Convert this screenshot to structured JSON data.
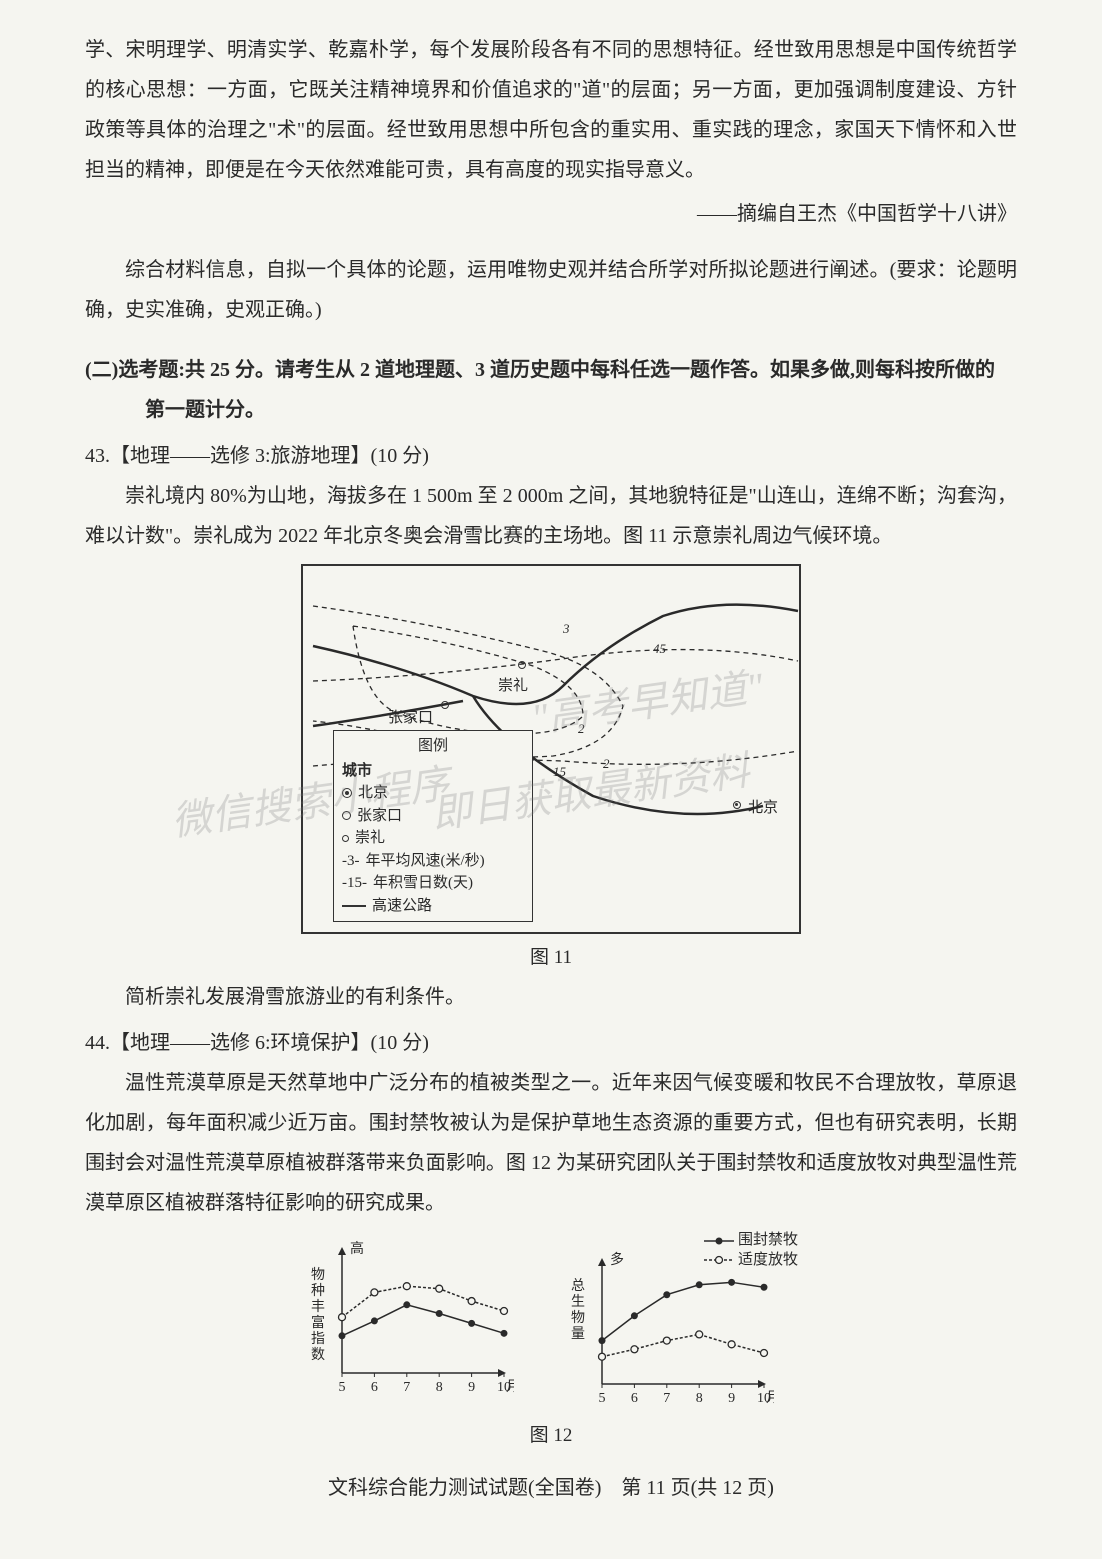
{
  "intro_paragraph": "学、宋明理学、明清实学、乾嘉朴学，每个发展阶段各有不同的思想特征。经世致用思想是中国传统哲学的核心思想：一方面，它既关注精神境界和价值追求的\"道\"的层面；另一方面，更加强调制度建设、方针政策等具体的治理之\"术\"的层面。经世致用思想中所包含的重实用、重实践的理念，家国天下情怀和入世担当的精神，即便是在今天依然难能可贵，具有高度的现实指导意义。",
  "citation": "——摘编自王杰《中国哲学十八讲》",
  "task_paragraph": "综合材料信息，自拟一个具体的论题，运用唯物史观并结合所学对所拟论题进行阐述。(要求：论题明确，史实准确，史观正确。)",
  "section2": {
    "line1": "(二)选考题:共 25 分。请考生从 2 道地理题、3 道历史题中每科任选一题作答。如果多做,则每科按所做的",
    "line2": "第一题计分。"
  },
  "q43": {
    "title": "43.【地理——选修 3:旅游地理】(10 分)",
    "body": "崇礼境内 80%为山地，海拔多在 1 500m 至 2 000m 之间，其地貌特征是\"山连山，连绵不断；沟套沟，难以计数\"。崇礼成为 2022 年北京冬奥会滑雪比赛的主场地。图 11 示意崇礼周边气候环境。",
    "figure_caption": "图 11",
    "subquestion": "简析崇礼发展滑雪旅游业的有利条件。"
  },
  "map": {
    "legend": {
      "title": "图例",
      "city_label": "城市",
      "beijing": "北京",
      "zhangjiakou": "张家口",
      "chongli": "崇礼",
      "wind": "年平均风速(米/秒)",
      "wind_marker": "-3-",
      "snow": "年积雪日数(天)",
      "snow_marker": "-15-",
      "highway": "高速公路"
    },
    "labels": {
      "zhangjiakou": "张家口",
      "chongli": "崇礼",
      "beijing": "北京"
    },
    "isolines": {
      "wind_values": [
        "2",
        "3"
      ],
      "snow_values": [
        "15",
        "45"
      ]
    },
    "colors": {
      "line": "#2a2a2a",
      "background": "#f5f5f0"
    }
  },
  "q44": {
    "title": "44.【地理——选修 6:环境保护】(10 分)",
    "body": "温性荒漠草原是天然草地中广泛分布的植被类型之一。近年来因气候变暖和牧民不合理放牧，草原退化加剧，每年面积减少近万亩。围封禁牧被认为是保护草地生态资源的重要方式，但也有研究表明，长期围封会对温性荒漠草原植被群落带来负面影响。图 12 为某研究团队关于围封禁牧和适度放牧对典型温性荒漠草原区植被群落特征影响的研究成果。",
    "figure_caption": "图 12"
  },
  "charts": {
    "legend": {
      "fenced": "围封禁牧",
      "grazing": "适度放牧"
    },
    "chart1": {
      "ylabel": "物种丰富指数",
      "ytop": "高",
      "xlabel": "月份",
      "xticks": [
        "5",
        "6",
        "7",
        "8",
        "9",
        "10"
      ],
      "series_fenced": [
        30,
        42,
        55,
        48,
        40,
        32
      ],
      "series_grazing": [
        45,
        65,
        70,
        68,
        58,
        50
      ]
    },
    "chart2": {
      "ylabel": "总生物量",
      "ytop": "多",
      "xlabel": "月份",
      "xticks": [
        "5",
        "6",
        "7",
        "8",
        "9",
        "10"
      ],
      "series_fenced": [
        35,
        55,
        72,
        80,
        82,
        78
      ],
      "series_grazing": [
        22,
        28,
        35,
        40,
        32,
        25
      ]
    },
    "style": {
      "axis_color": "#2a2a2a",
      "fenced_marker": "filled",
      "grazing_marker": "hollow",
      "line_width": 1.5,
      "marker_radius": 3.5,
      "font_size": 14
    }
  },
  "footer": "文科综合能力测试试题(全国卷)　第 11 页(共 12 页)",
  "watermarks": {
    "w1": "微信搜索小程序",
    "w2": "\"高考早知道\"",
    "w3": "即日获取最新资料"
  }
}
